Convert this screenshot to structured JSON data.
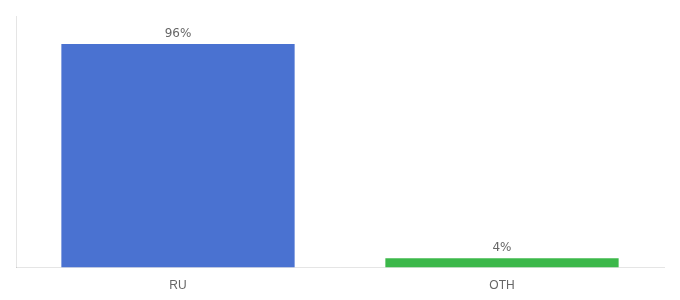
{
  "chart_data": {
    "type": "bar",
    "categories": [
      "RU",
      "OTH"
    ],
    "values": [
      96,
      4
    ],
    "value_labels": [
      "96%",
      "4%"
    ],
    "colors": [
      "#4a72d1",
      "#3cb84a"
    ],
    "ylim": [
      0,
      108
    ],
    "data_labels": true,
    "tick_labels": "x",
    "grid": false
  }
}
